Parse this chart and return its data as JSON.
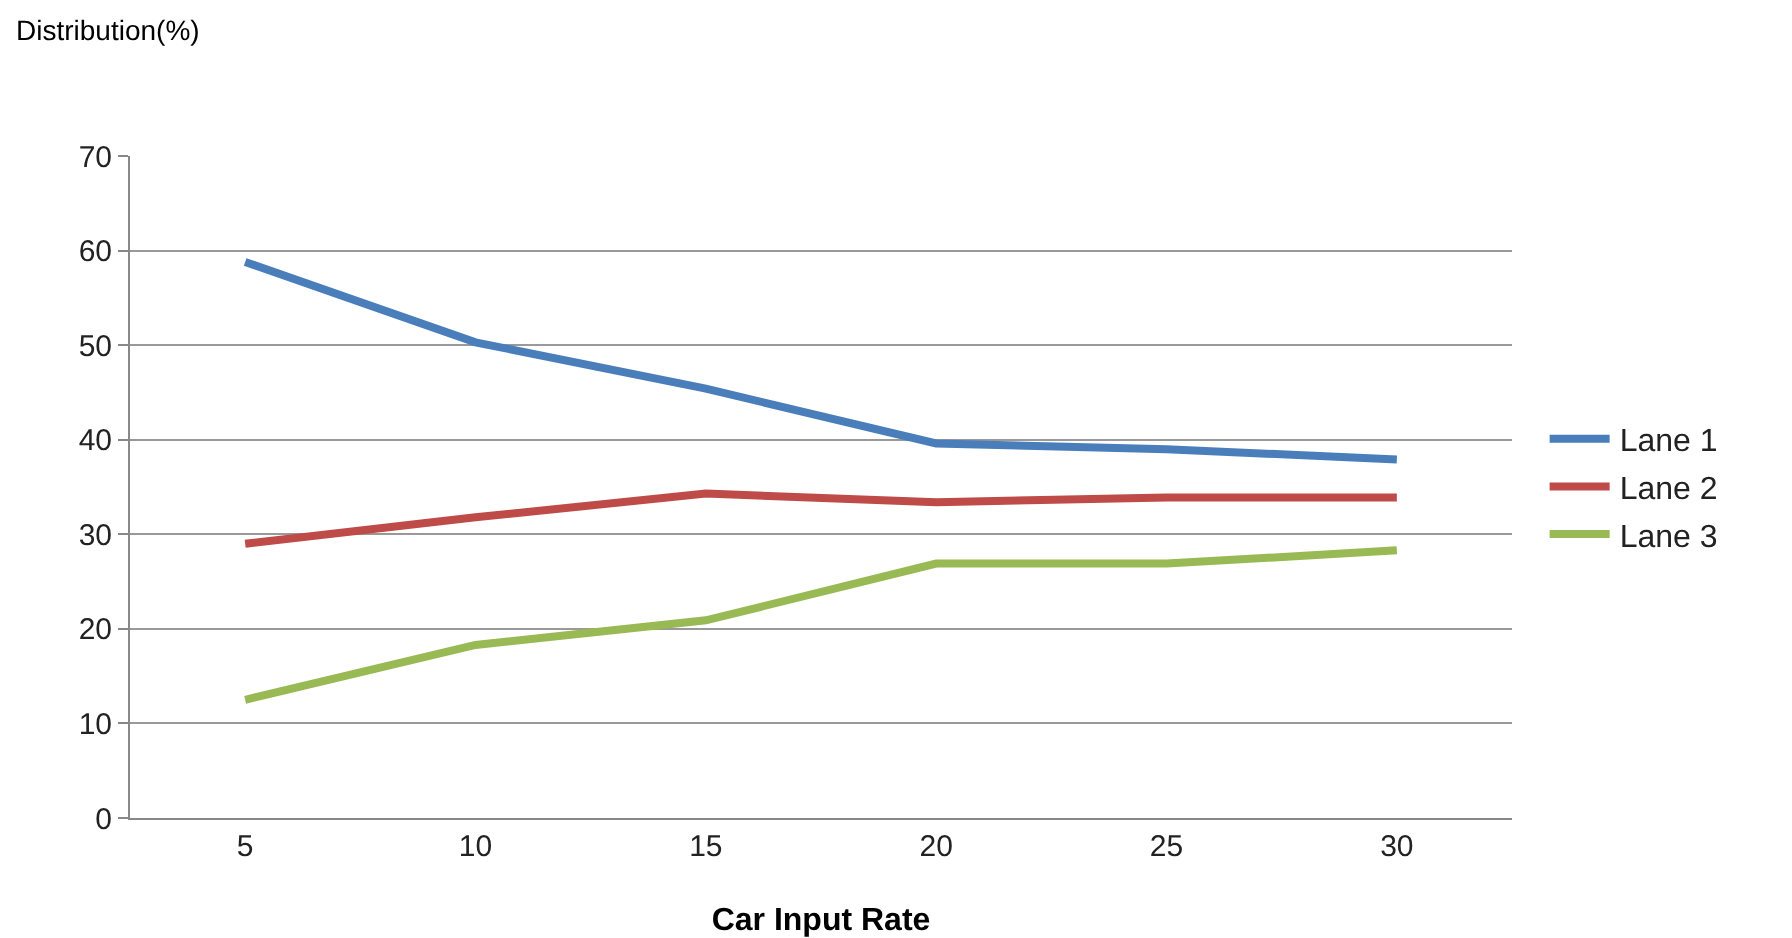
{
  "chart_data": {
    "type": "line",
    "ylabel": "Distribution(%)",
    "xlabel": "Car Input Rate",
    "categories": [
      "5",
      "10",
      "15",
      "20",
      "25",
      "30"
    ],
    "series": [
      {
        "name": "Lane 1",
        "color": "#4a7ebb",
        "values": [
          58.8,
          50.3,
          45.4,
          39.6,
          39,
          37.9
        ]
      },
      {
        "name": "Lane 2",
        "color": "#be4b48",
        "values": [
          29,
          31.8,
          34.3,
          33.4,
          33.9,
          33.9
        ]
      },
      {
        "name": "Lane 3",
        "color": "#98b954",
        "values": [
          12.5,
          18.3,
          20.9,
          26.9,
          26.9,
          28.3
        ]
      }
    ],
    "ylim": [
      0,
      70
    ],
    "yticks": [
      0,
      10,
      20,
      30,
      40,
      50,
      60,
      70
    ],
    "grid": "y",
    "legend": "right",
    "marker": "none",
    "line_style": "solid"
  }
}
